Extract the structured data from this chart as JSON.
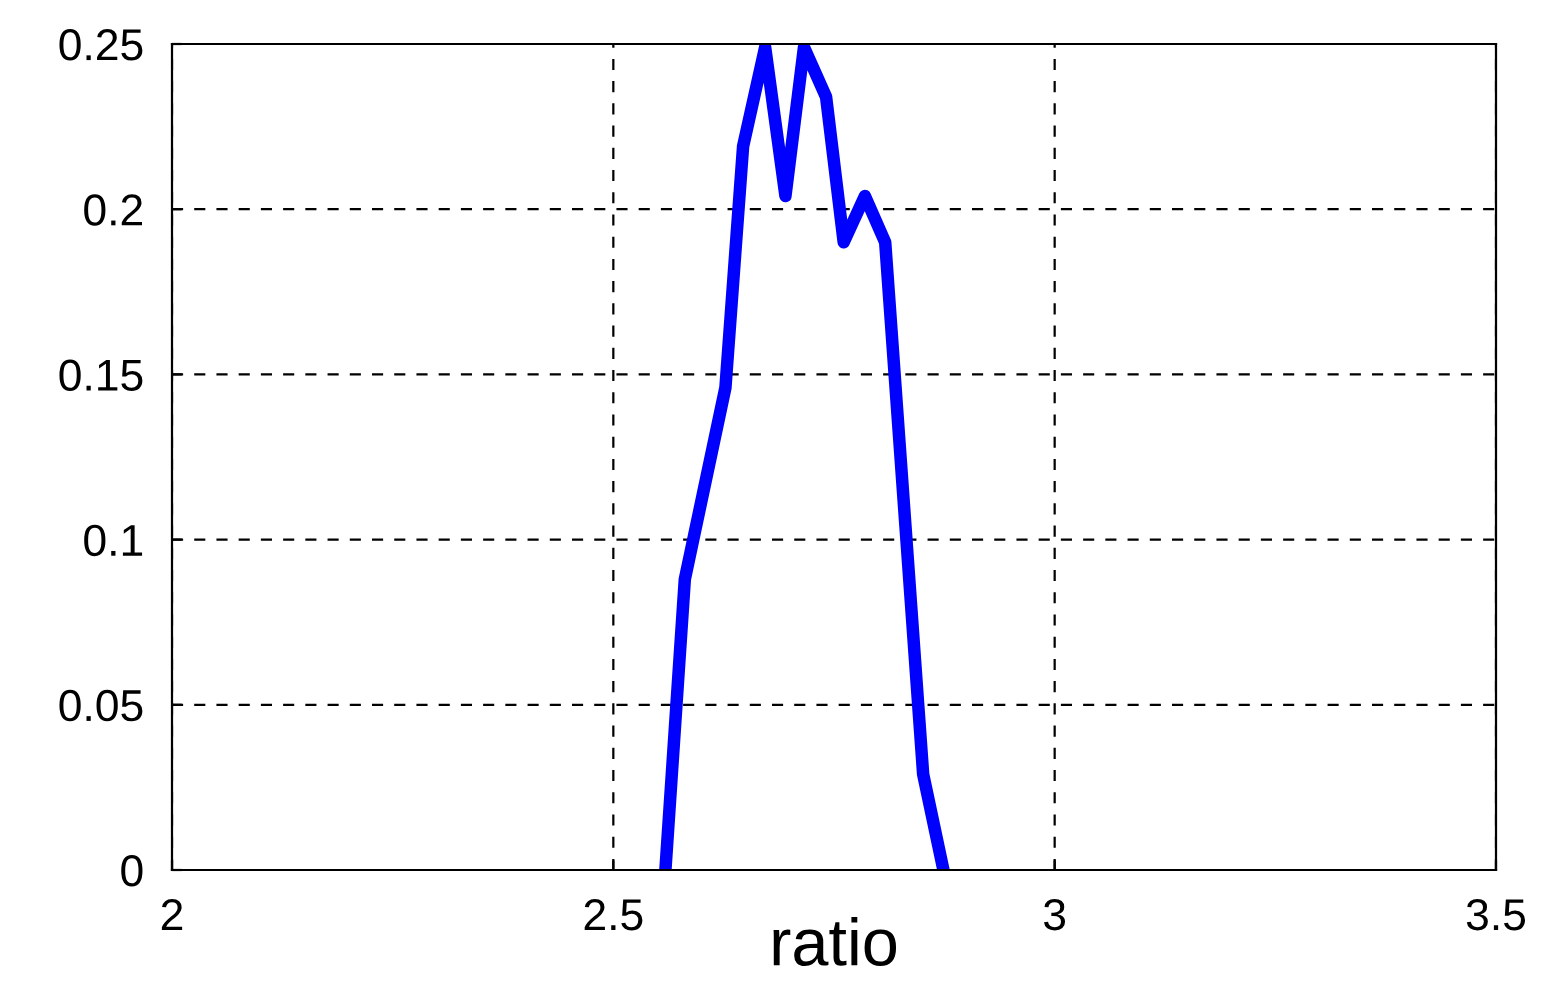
{
  "chart_data": {
    "type": "line",
    "xlabel": "ratio",
    "x": [
      2.559,
      2.581,
      2.627,
      2.647,
      2.672,
      2.695,
      2.716,
      2.741,
      2.761,
      2.785,
      2.808,
      2.851,
      2.874
    ],
    "series": [
      {
        "color": "#0000ff",
        "values": [
          0,
          0.088,
          0.146,
          0.219,
          0.249,
          0.204,
          0.249,
          0.234,
          0.19,
          0.204,
          0.19,
          0.029,
          0
        ]
      }
    ],
    "xlim": [
      2,
      3.5
    ],
    "ylim": [
      0,
      0.25
    ],
    "xticks": [
      2,
      2.5,
      3,
      3.5
    ],
    "yticks": [
      0,
      0.05,
      0.1,
      0.15,
      0.2,
      0.25
    ],
    "grid": true,
    "line_style": "solid"
  }
}
